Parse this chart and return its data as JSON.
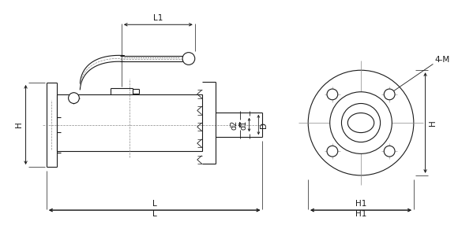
{
  "bg_color": "#ffffff",
  "line_color": "#1a1a1a",
  "dim_color": "#1a1a1a",
  "center_color": "#888888",
  "thin_lw": 0.8,
  "dim_lw": 0.7,
  "font_size": 7.5,
  "labels": {
    "L1": "L1",
    "L": "L",
    "H": "H",
    "H1": "H1",
    "Hn": "H",
    "d1": "d1",
    "d2": "d2",
    "D": "D",
    "4M": "4-M"
  }
}
